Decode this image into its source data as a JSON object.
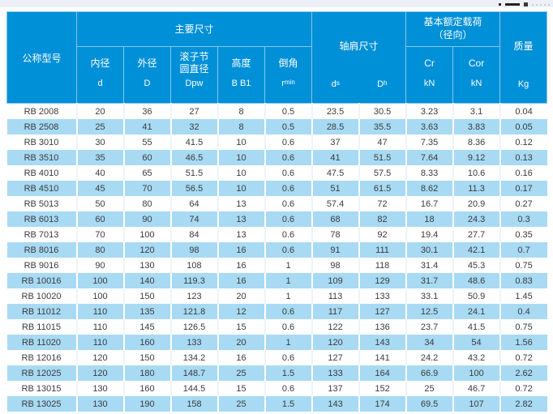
{
  "page": {
    "top_fragment": "cropped-graphic-marks"
  },
  "table": {
    "header": {
      "model_label": "公称型号",
      "main_dims_label": "主要尺寸",
      "shoulder_label": "轴肩尺寸",
      "load_line1": "基本额定载荷",
      "load_line2": "（径向）",
      "mass_label": "质量",
      "mass_unit": "Kg",
      "load_unit": "kN",
      "cr_label": "Cr",
      "cor_label": "Cor",
      "ds_main": "d",
      "ds_sub": "s",
      "dh_main": "D",
      "dh_sub": "h",
      "sub": [
        {
          "name": "内径",
          "sym": "d",
          "sym_sub": ""
        },
        {
          "name": "外径",
          "sym": "D",
          "sym_sub": ""
        },
        {
          "name": "滚子节圆直径",
          "sym": "Dpw",
          "sym_sub": ""
        },
        {
          "name": "高度",
          "sym": "B B1",
          "sym_sub": ""
        },
        {
          "name": "倒角",
          "sym": "r",
          "sym_sub": "min"
        }
      ]
    },
    "rows": [
      [
        "RB 2008",
        "20",
        "36",
        "27",
        "8",
        "0.5",
        "23.5",
        "30.5",
        "3.23",
        "3.1",
        "0.04"
      ],
      [
        "RB 2508",
        "25",
        "41",
        "32",
        "8",
        "0.5",
        "28.5",
        "35.5",
        "3.63",
        "3.83",
        "0.05"
      ],
      [
        "RB 3010",
        "30",
        "55",
        "41.5",
        "10",
        "0.6",
        "37",
        "47",
        "7.35",
        "8.36",
        "0.12"
      ],
      [
        "RB 3510",
        "35",
        "60",
        "46.5",
        "10",
        "0.6",
        "41",
        "51.5",
        "7.64",
        "9.12",
        "0.13"
      ],
      [
        "RB 4010",
        "40",
        "65",
        "51.5",
        "10",
        "0.6",
        "47.5",
        "57.5",
        "8.33",
        "10.6",
        "0.16"
      ],
      [
        "RB 4510",
        "45",
        "70",
        "56.5",
        "10",
        "0.6",
        "51",
        "61.5",
        "8.62",
        "11.3",
        "0.17"
      ],
      [
        "RB 5013",
        "50",
        "80",
        "64",
        "13",
        "0.6",
        "57.4",
        "72",
        "16.7",
        "20.9",
        "0.27"
      ],
      [
        "RB 6013",
        "60",
        "90",
        "74",
        "13",
        "0.6",
        "68",
        "82",
        "18",
        "24.3",
        "0.3"
      ],
      [
        "RB 7013",
        "70",
        "100",
        "84",
        "13",
        "0.6",
        "78",
        "92",
        "19.4",
        "27.7",
        "0.35"
      ],
      [
        "RB 8016",
        "80",
        "120",
        "98",
        "16",
        "0.6",
        "91",
        "111",
        "30.1",
        "42.1",
        "0.7"
      ],
      [
        "RB 9016",
        "90",
        "130",
        "108",
        "16",
        "1",
        "98",
        "118",
        "31.4",
        "45.3",
        "0.75"
      ],
      [
        "RB 10016",
        "100",
        "140",
        "119.3",
        "16",
        "1",
        "109",
        "129",
        "31.7",
        "48.6",
        "0.83"
      ],
      [
        "RB 10020",
        "100",
        "150",
        "123",
        "20",
        "1",
        "113",
        "133",
        "33.1",
        "50.9",
        "1.45"
      ],
      [
        "RB 11012",
        "110",
        "135",
        "121.8",
        "12",
        "0.6",
        "117",
        "127",
        "12.5",
        "24.1",
        "0.4"
      ],
      [
        "RB 11015",
        "110",
        "145",
        "126.5",
        "15",
        "0.6",
        "122",
        "136",
        "23.7",
        "41.5",
        "0.75"
      ],
      [
        "RB 11020",
        "110",
        "160",
        "133",
        "20",
        "1",
        "120",
        "143",
        "34",
        "54",
        "1.56"
      ],
      [
        "RB 12016",
        "120",
        "150",
        "134.2",
        "16",
        "0.6",
        "127",
        "141",
        "24.2",
        "43.2",
        "0.72"
      ],
      [
        "RB 12025",
        "120",
        "180",
        "148.7",
        "25",
        "1.5",
        "133",
        "164",
        "66.9",
        "100",
        "2.62"
      ],
      [
        "RB 13015",
        "130",
        "160",
        "144.5",
        "15",
        "0.6",
        "137",
        "152",
        "25",
        "46.7",
        "0.72"
      ],
      [
        "RB 13025",
        "130",
        "190",
        "158",
        "25",
        "1.5",
        "143",
        "174",
        "69.5",
        "107",
        "2.82"
      ]
    ]
  }
}
